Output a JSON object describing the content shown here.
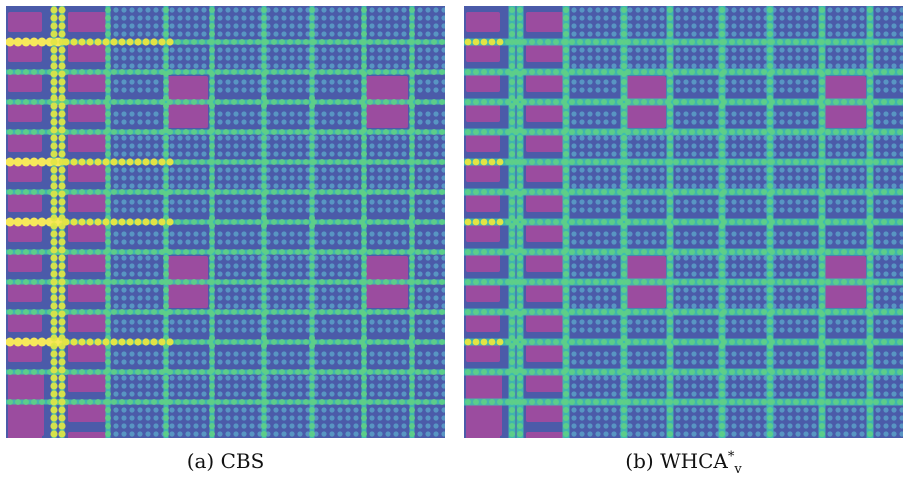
{
  "figures": [
    {
      "id": "a",
      "label": "(a)",
      "caption_name": "CBS",
      "variant": "cbs"
    },
    {
      "id": "b",
      "label": "(b)",
      "caption_name": "WHCA",
      "caption_sup": "*",
      "caption_sub": "v",
      "variant": "whca"
    }
  ],
  "colors": {
    "background": "#4b5ba9",
    "obstacle": "#9b4c9f",
    "node_low": "#38b5a9",
    "node_mid": "#5fcf86",
    "node_high": "#e2e444",
    "hotspot": "#f7e85a",
    "corridor": "#3fbfae"
  }
}
